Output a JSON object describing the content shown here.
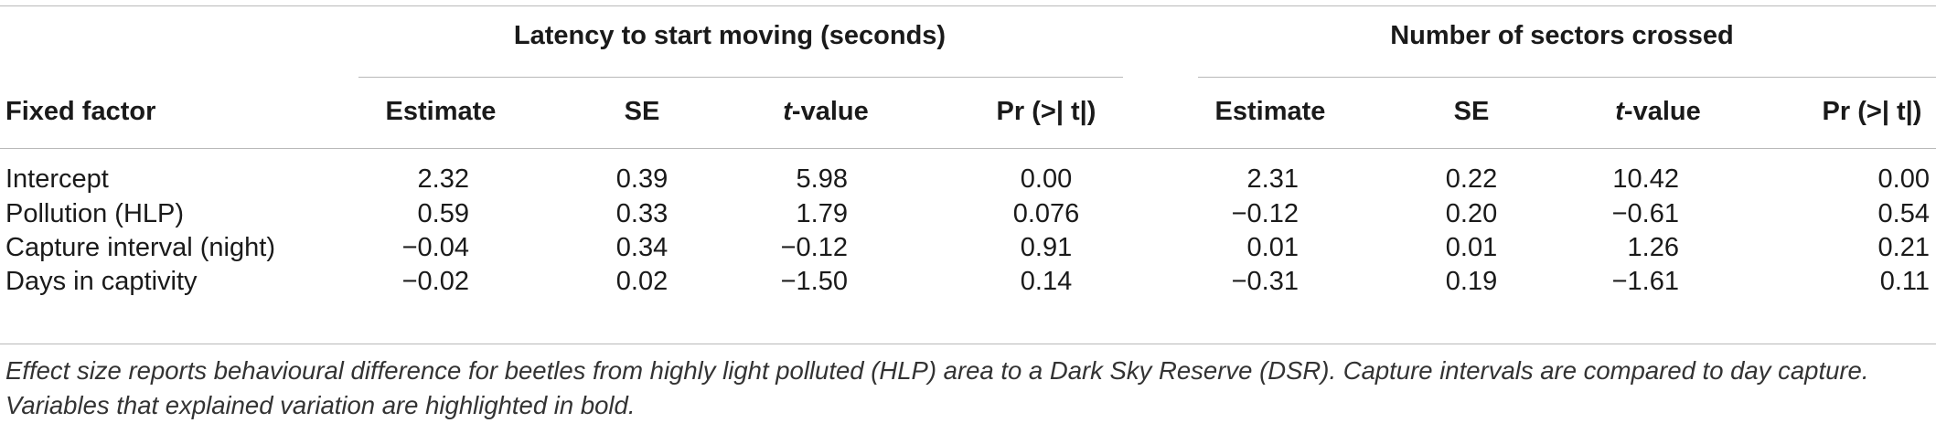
{
  "table": {
    "group_headers": [
      "Latency to start moving (seconds)",
      "Number of sectors crossed"
    ],
    "row_header": "Fixed factor",
    "columns": [
      {
        "pre": "",
        "em": "",
        "post": "Estimate"
      },
      {
        "pre": "",
        "em": "",
        "post": "SE"
      },
      {
        "pre": "",
        "em": "t",
        "post": "-value"
      },
      {
        "pre": "Pr (>| t|)",
        "em": "",
        "post": ""
      },
      {
        "pre": "",
        "em": "",
        "post": "Estimate"
      },
      {
        "pre": "",
        "em": "",
        "post": "SE"
      },
      {
        "pre": "",
        "em": "t",
        "post": "-value"
      },
      {
        "pre": "Pr (>| t|)",
        "em": "",
        "post": ""
      }
    ],
    "rows": [
      {
        "label": "Intercept",
        "values": [
          "2.32",
          "0.39",
          "5.98",
          "0.00",
          "2.31",
          "0.22",
          "10.42",
          "0.00"
        ]
      },
      {
        "label": "Pollution (HLP)",
        "values": [
          "0.59",
          "0.33",
          "1.79",
          "0.076",
          "−0.12",
          "0.20",
          "−0.61",
          "0.54"
        ]
      },
      {
        "label": "Capture interval (night)",
        "values": [
          "−0.04",
          "0.34",
          "−0.12",
          "0.91",
          "0.01",
          "0.01",
          "1.26",
          "0.21"
        ]
      },
      {
        "label": "Days in captivity",
        "values": [
          "−0.02",
          "0.02",
          "−1.50",
          "0.14",
          "−0.31",
          "0.19",
          "−1.61",
          "0.11"
        ]
      }
    ]
  },
  "footnote": [
    "Effect size reports behavioural difference for beetles from highly light polluted (HLP) area to a Dark Sky Reserve (DSR). Capture intervals are compared to day capture.",
    "Variables that explained variation are highlighted in bold."
  ]
}
